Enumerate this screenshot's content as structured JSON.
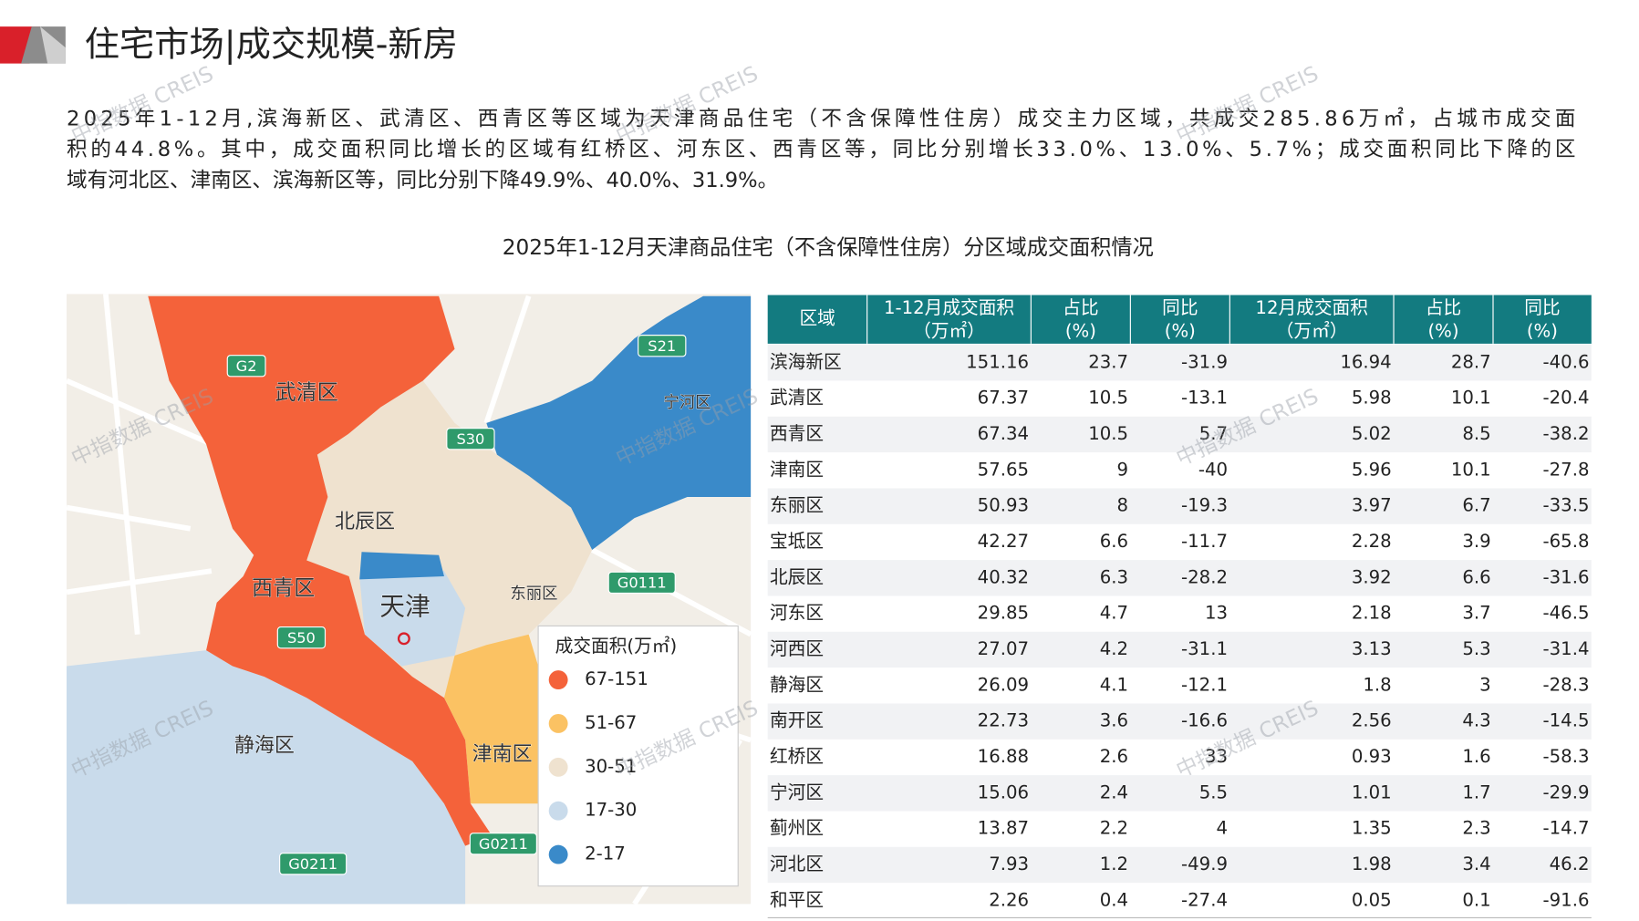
{
  "header": {
    "title": "住宅市场|成交规模-新房"
  },
  "paragraph": [
    "2025年1-12月,滨海新区、武清区、西青区等区域为天津商品住宅（不含保障性住房）成交主力区域，共成交285.86万㎡，占城市成交面",
    "积的44.8%。其中，成交面积同比增长的区域有红桥区、河东区、西青区等，同比分别增长33.0%、13.0%、5.7%；成交面积同比下降的区",
    "域有河北区、津南区、滨海新区等，同比分别下降49.9%、40.0%、31.9%。"
  ],
  "figure_title": "2025年1-12月天津商品住宅（不含保障性住房）分区域成交面积情况",
  "watermark": "中指数据 CREIS",
  "map": {
    "labels": [
      "武清区",
      "北辰区",
      "西青区",
      "天津",
      "静海区",
      "津南区",
      "东丽区",
      "宁河区"
    ],
    "roads": [
      "G2",
      "S21",
      "S30",
      "G0111",
      "S50",
      "G0211",
      "G0211"
    ],
    "legend": {
      "title": "成交面积(万㎡)",
      "items": [
        {
          "label": "67-151",
          "color": "#f4623a"
        },
        {
          "label": "51-67",
          "color": "#fbc263"
        },
        {
          "label": "30-51",
          "color": "#efe2cf"
        },
        {
          "label": "17-30",
          "color": "#c9dbeb"
        },
        {
          "label": "2-17",
          "color": "#3a8ac9"
        }
      ]
    }
  },
  "table": {
    "header": [
      [
        "区域"
      ],
      [
        "1-12月成交面积",
        "（万㎡）"
      ],
      [
        "占比",
        "(%)"
      ],
      [
        "同比",
        "(%)"
      ],
      [
        "12月成交面积",
        "（万㎡）"
      ],
      [
        "占比",
        "(%)"
      ],
      [
        "同比",
        "(%)"
      ]
    ],
    "rows": [
      [
        "滨海新区",
        "151.16",
        "23.7",
        "-31.9",
        "16.94",
        "28.7",
        "-40.6"
      ],
      [
        "武清区",
        "67.37",
        "10.5",
        "-13.1",
        "5.98",
        "10.1",
        "-20.4"
      ],
      [
        "西青区",
        "67.34",
        "10.5",
        "5.7",
        "5.02",
        "8.5",
        "-38.2"
      ],
      [
        "津南区",
        "57.65",
        "9",
        "-40",
        "5.96",
        "10.1",
        "-27.8"
      ],
      [
        "东丽区",
        "50.93",
        "8",
        "-19.3",
        "3.97",
        "6.7",
        "-33.5"
      ],
      [
        "宝坻区",
        "42.27",
        "6.6",
        "-11.7",
        "2.28",
        "3.9",
        "-65.8"
      ],
      [
        "北辰区",
        "40.32",
        "6.3",
        "-28.2",
        "3.92",
        "6.6",
        "-31.6"
      ],
      [
        "河东区",
        "29.85",
        "4.7",
        "13",
        "2.18",
        "3.7",
        "-46.5"
      ],
      [
        "河西区",
        "27.07",
        "4.2",
        "-31.1",
        "3.13",
        "5.3",
        "-31.4"
      ],
      [
        "静海区",
        "26.09",
        "4.1",
        "-12.1",
        "1.8",
        "3",
        "-28.3"
      ],
      [
        "南开区",
        "22.73",
        "3.6",
        "-16.6",
        "2.56",
        "4.3",
        "-14.5"
      ],
      [
        "红桥区",
        "16.88",
        "2.6",
        "33",
        "0.93",
        "1.6",
        "-58.3"
      ],
      [
        "宁河区",
        "15.06",
        "2.4",
        "5.5",
        "1.01",
        "1.7",
        "-29.9"
      ],
      [
        "蓟州区",
        "13.87",
        "2.2",
        "4",
        "1.35",
        "2.3",
        "-14.7"
      ],
      [
        "河北区",
        "7.93",
        "1.2",
        "-49.9",
        "1.98",
        "3.4",
        "46.2"
      ],
      [
        "和平区",
        "2.26",
        "0.4",
        "-27.4",
        "0.05",
        "0.1",
        "-91.6"
      ]
    ]
  }
}
